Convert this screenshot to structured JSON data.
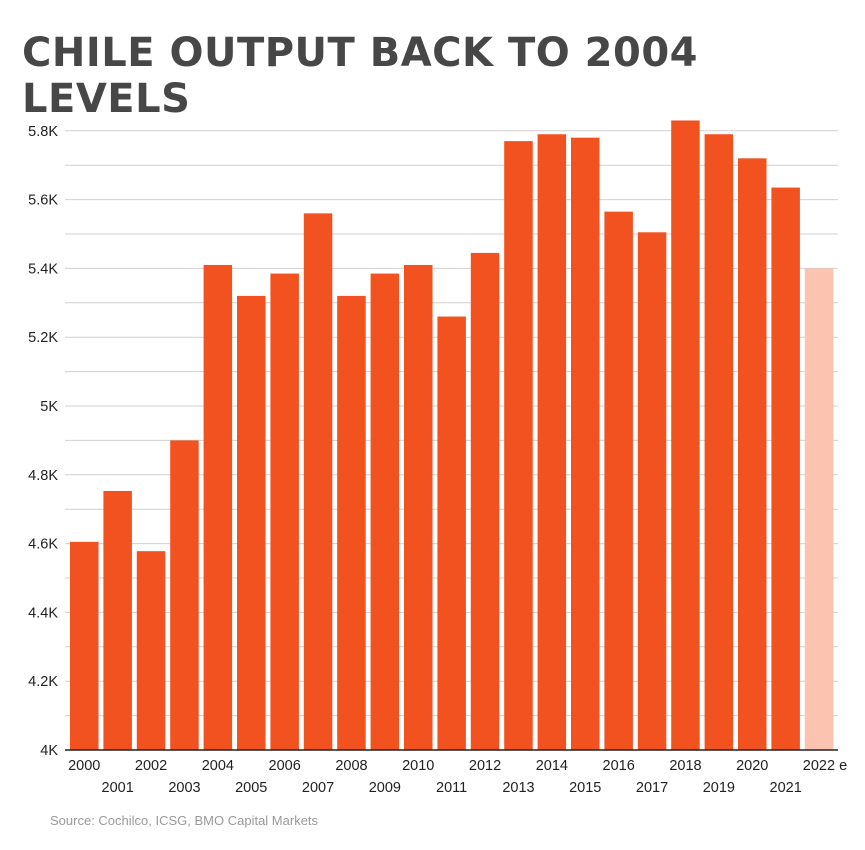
{
  "title": "CHILE OUTPUT BACK TO 2004 LEVELS",
  "source": "Source: Cochilco, ICSG, BMO Capital Markets",
  "chart_data": {
    "type": "bar",
    "title": "CHILE OUTPUT BACK TO 2004 LEVELS",
    "xlabel": "",
    "ylabel": "",
    "categories": [
      "2000",
      "2001",
      "2002",
      "2003",
      "2004",
      "2005",
      "2006",
      "2007",
      "2008",
      "2009",
      "2010",
      "2011",
      "2012",
      "2013",
      "2014",
      "2015",
      "2016",
      "2017",
      "2018",
      "2019",
      "2020",
      "2021",
      "2022e"
    ],
    "values": [
      4.605,
      4.753,
      4.578,
      4.9,
      5.41,
      5.32,
      5.385,
      5.56,
      5.32,
      5.385,
      5.41,
      5.26,
      5.445,
      5.77,
      5.79,
      5.78,
      5.565,
      5.505,
      5.83,
      5.79,
      5.72,
      5.635,
      5.4
    ],
    "estimate_categories": [
      "2022e"
    ],
    "ylim": [
      4,
      5.85
    ],
    "yticks": [
      4,
      4.2,
      4.4,
      4.6,
      4.8,
      5,
      5.2,
      5.4,
      5.6,
      5.8
    ],
    "ytick_labels": [
      "4K",
      "4.2K",
      "4.4K",
      "4.6K",
      "4.8K",
      "5K",
      "5.2K",
      "5.4K",
      "5.6K",
      "5.8K"
    ],
    "grid": true,
    "grid_step": 0.1,
    "colors": {
      "actual": "#f25220",
      "estimate": "#fcc3b0",
      "grid": "#d0d0d0"
    }
  }
}
